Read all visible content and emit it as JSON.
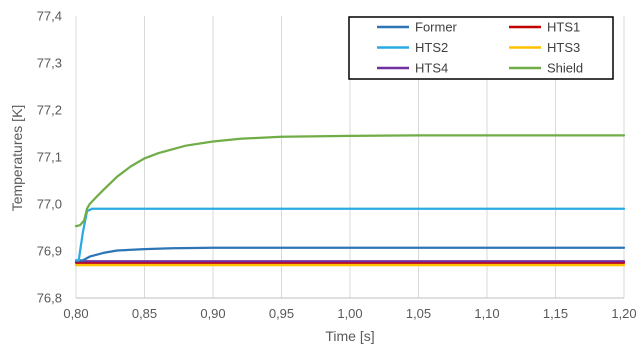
{
  "chart_data": {
    "type": "line",
    "title": "",
    "xlabel": "Time [s]",
    "ylabel": "Temperatures [K]",
    "xlim": [
      0.8,
      1.2
    ],
    "ylim": [
      76.8,
      77.4
    ],
    "x_ticks": [
      "0,80",
      "0,85",
      "0,90",
      "0,95",
      "1,00",
      "1,05",
      "1,10",
      "1,15",
      "1,20"
    ],
    "y_ticks": [
      "76,8",
      "76,9",
      "77,0",
      "77,1",
      "77,2",
      "77,3",
      "77,4"
    ],
    "grid": "vertical",
    "legend_position": "top-right",
    "series": [
      {
        "name": "Former",
        "color": "#2E75B6",
        "x": [
          0.8,
          0.805,
          0.81,
          0.82,
          0.83,
          0.85,
          0.87,
          0.9,
          1.0,
          1.2
        ],
        "y": [
          76.88,
          76.88,
          76.888,
          76.896,
          76.901,
          76.904,
          76.906,
          76.907,
          76.907,
          76.907
        ]
      },
      {
        "name": "HTS1",
        "color": "#C00000",
        "x": [
          0.8,
          1.2
        ],
        "y": [
          76.875,
          76.875
        ]
      },
      {
        "name": "HTS2",
        "color": "#29ABE2",
        "x": [
          0.8,
          0.802,
          0.805,
          0.808,
          0.812,
          0.82,
          1.2
        ],
        "y": [
          76.88,
          76.88,
          76.94,
          76.985,
          76.99,
          76.99,
          76.99
        ]
      },
      {
        "name": "HTS3",
        "color": "#FFC000",
        "x": [
          0.8,
          1.2
        ],
        "y": [
          76.87,
          76.87
        ]
      },
      {
        "name": "HTS4",
        "color": "#7030A0",
        "x": [
          0.8,
          1.2
        ],
        "y": [
          76.878,
          76.878
        ]
      },
      {
        "name": "Shield",
        "color": "#70AD47",
        "x": [
          0.8,
          0.803,
          0.806,
          0.808,
          0.81,
          0.815,
          0.82,
          0.83,
          0.84,
          0.85,
          0.86,
          0.88,
          0.9,
          0.92,
          0.95,
          1.0,
          1.05,
          1.1,
          1.2
        ],
        "y": [
          76.953,
          76.955,
          76.965,
          76.99,
          77.0,
          77.015,
          77.03,
          77.058,
          77.08,
          77.097,
          77.108,
          77.124,
          77.133,
          77.139,
          77.143,
          77.145,
          77.146,
          77.146,
          77.146
        ]
      }
    ],
    "legend_order": [
      0,
      1,
      2,
      3,
      4,
      5
    ]
  }
}
